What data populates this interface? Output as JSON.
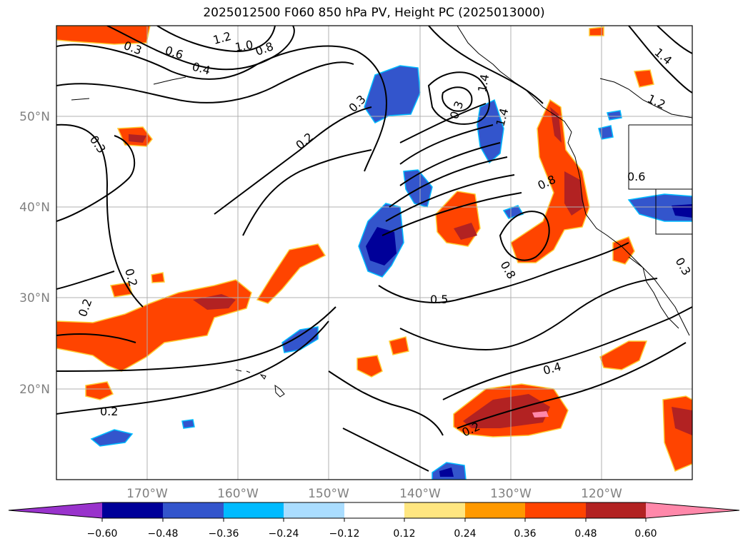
{
  "title": "2025012500 F060 850 hPa PV, Height PC (2025013000)",
  "map": {
    "lat_labels": [
      "50°N",
      "40°N",
      "30°N",
      "20°N"
    ],
    "lon_labels": [
      "170°W",
      "160°W",
      "150°W",
      "140°W",
      "130°W",
      "120°W"
    ],
    "contour_labels": [
      "0.3",
      "0.6",
      "0.4",
      "1.2",
      "1.0",
      "0.8",
      "1.4",
      "0.3",
      "0.2",
      "0.3",
      "0.8",
      "0.6",
      "0.2",
      "0.2",
      "0.5",
      "0.8",
      "0.4",
      "0.2",
      "0.2",
      "1.2",
      "1.4",
      "0.3",
      "1.4",
      "0.3"
    ]
  },
  "colorbar": {
    "colors": [
      "#9933cc",
      "#000099",
      "#3355cc",
      "#00bbff",
      "#aaddff",
      "#ffffff",
      "#ffe680",
      "#ff9900",
      "#ff4400",
      "#b22222",
      "#ff88aa"
    ],
    "ticks": [
      "−0.60",
      "−0.48",
      "−0.36",
      "−0.24",
      "−0.12",
      "0.12",
      "0.24",
      "0.36",
      "0.48",
      "0.60"
    ]
  }
}
